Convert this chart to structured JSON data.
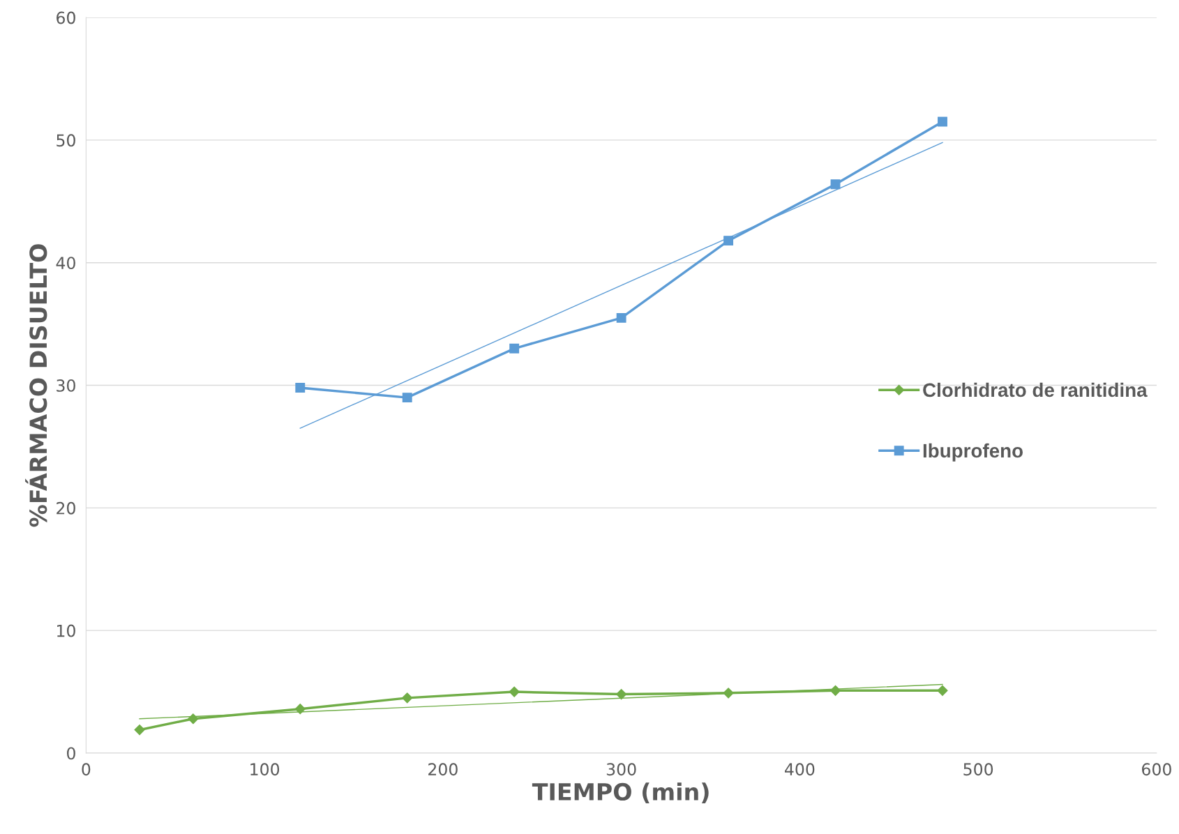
{
  "chart_data": {
    "type": "line",
    "xlabel": "TIEMPO (min)",
    "ylabel": "%FÁRMACO DISUELTO",
    "xlim": [
      0,
      600
    ],
    "xticks": [
      0,
      100,
      200,
      300,
      400,
      500,
      600
    ],
    "ylim": [
      0,
      60
    ],
    "yticks": [
      0,
      10,
      20,
      30,
      40,
      50,
      60
    ],
    "grid": "y",
    "legend": "right",
    "line_style": "solid",
    "series": [
      {
        "name": "Clorhidrato de ranitidina",
        "color": "#70ad47",
        "marker": "diamond",
        "x": [
          30,
          60,
          120,
          180,
          240,
          300,
          360,
          420,
          480
        ],
        "values": [
          1.9,
          2.8,
          3.6,
          4.5,
          5.0,
          4.8,
          4.9,
          5.1,
          5.1
        ]
      },
      {
        "name": "Ibuprofeno",
        "color": "#5b9bd5",
        "marker": "square",
        "x": [
          120,
          180,
          240,
          300,
          360,
          420,
          480
        ],
        "values": [
          29.8,
          29.0,
          33.0,
          35.5,
          41.8,
          46.4,
          51.5
        ]
      },
      {
        "color": "#70ad47",
        "marker": "none",
        "x": [
          30,
          480
        ],
        "values": [
          2.8,
          5.6
        ]
      },
      {
        "color": "#5b9bd5",
        "marker": "none",
        "x": [
          120,
          480
        ],
        "values": [
          26.5,
          49.8
        ]
      }
    ]
  }
}
